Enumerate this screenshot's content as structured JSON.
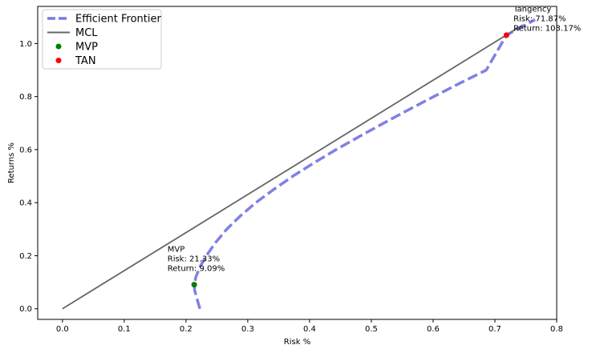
{
  "chart_data": {
    "type": "line",
    "xlabel": "Risk %",
    "ylabel": "Returns %",
    "xlim": [
      -0.04,
      0.8
    ],
    "ylim": [
      -0.04,
      1.14
    ],
    "x_ticks": [
      "0.0",
      "0.1",
      "0.2",
      "0.3",
      "0.4",
      "0.5",
      "0.6",
      "0.7",
      "0.8"
    ],
    "y_ticks": [
      "0.0",
      "0.2",
      "0.4",
      "0.6",
      "0.8",
      "1.0"
    ],
    "grid": false,
    "legend_position": "top-left",
    "legend": [
      {
        "label": "Efficient Frontier",
        "marker": "dashed-line",
        "color": "#6a6ae0"
      },
      {
        "label": "MCL",
        "marker": "line",
        "color": "#666666"
      },
      {
        "label": "MVP",
        "marker": "dot",
        "color": "#008000"
      },
      {
        "label": "TAN",
        "marker": "dot",
        "color": "#ff0000"
      }
    ],
    "series": [
      {
        "name": "Efficient Frontier",
        "style": "dashed",
        "color": "#6a6ae0",
        "x": [
          0.2225,
          0.2175,
          0.214,
          0.2133,
          0.216,
          0.223,
          0.233,
          0.248,
          0.266,
          0.288,
          0.313,
          0.342,
          0.373,
          0.407,
          0.443,
          0.481,
          0.52,
          0.56,
          0.601,
          0.643,
          0.686,
          0.7187,
          0.765
        ],
        "y": [
          0.0,
          0.04,
          0.07,
          0.0909,
          0.12,
          0.16,
          0.2,
          0.25,
          0.3,
          0.35,
          0.4,
          0.45,
          0.5,
          0.55,
          0.6,
          0.65,
          0.7,
          0.75,
          0.8,
          0.85,
          0.9,
          1.0317,
          1.09
        ]
      },
      {
        "name": "MCL",
        "style": "solid",
        "color": "#666666",
        "x": [
          0.0,
          0.745
        ],
        "y": [
          0.0,
          1.07
        ]
      }
    ],
    "points": [
      {
        "name": "MVP",
        "x": 0.2133,
        "y": 0.0909,
        "color": "#008000"
      },
      {
        "name": "TAN",
        "x": 0.7187,
        "y": 1.0317,
        "color": "#ff0000"
      }
    ],
    "annotations": [
      {
        "lines": [
          "MVP",
          "Risk: 21.33%",
          "Return: 9.09%"
        ],
        "x": 0.17,
        "y": 0.215
      },
      {
        "lines": [
          "Tangency",
          "Risk: 71.87%",
          "Return: 103.17%"
        ],
        "x": 0.73,
        "y": 1.12
      }
    ]
  }
}
